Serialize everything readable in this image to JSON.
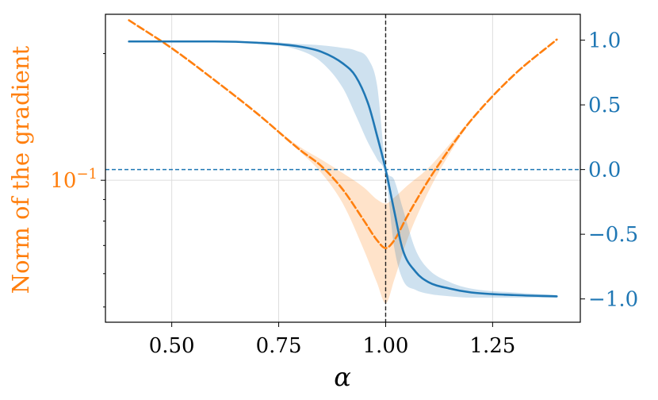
{
  "chart_data": {
    "type": "line",
    "xlabel": "α",
    "ylabel_left": "Norm of the gradient",
    "ylabel_right": "",
    "xlim": [
      0.345,
      1.455
    ],
    "x_ticks": [
      {
        "value": 0.5,
        "label": "0.50"
      },
      {
        "value": 0.75,
        "label": "0.75"
      },
      {
        "value": 1.0,
        "label": "1.00"
      },
      {
        "value": 1.25,
        "label": "1.25"
      }
    ],
    "left_axis": {
      "scale": "log",
      "ylim": [
        0.046,
        0.248
      ],
      "major_ticks": [
        {
          "value": 0.1,
          "base": "10",
          "exponent": "−1"
        }
      ],
      "minor_ticks": [
        0.05,
        0.06,
        0.07,
        0.08,
        0.09,
        0.2
      ]
    },
    "right_axis": {
      "scale": "linear",
      "ylim": [
        -1.18,
        1.2
      ],
      "ticks": [
        {
          "value": 1.0,
          "label": "1.0"
        },
        {
          "value": 0.5,
          "label": "0.5"
        },
        {
          "value": 0.0,
          "label": "0.0"
        },
        {
          "value": -0.5,
          "label": "−0.5"
        },
        {
          "value": -1.0,
          "label": "−1.0"
        }
      ]
    },
    "grid": true,
    "series": [
      {
        "axis": "left",
        "style": "dashed",
        "color": "#ff7f0e",
        "points": [
          {
            "x": 0.4,
            "y": 0.24,
            "lo": 0.24,
            "hi": 0.24
          },
          {
            "x": 0.5,
            "y": 0.206,
            "lo": 0.206,
            "hi": 0.206
          },
          {
            "x": 0.6,
            "y": 0.173,
            "lo": 0.173,
            "hi": 0.173
          },
          {
            "x": 0.7,
            "y": 0.144,
            "lo": 0.144,
            "hi": 0.144
          },
          {
            "x": 0.8,
            "y": 0.118,
            "lo": 0.117,
            "hi": 0.12
          },
          {
            "x": 0.85,
            "y": 0.108,
            "lo": 0.104,
            "hi": 0.112
          },
          {
            "x": 0.9,
            "y": 0.095,
            "lo": 0.088,
            "hi": 0.104
          },
          {
            "x": 0.95,
            "y": 0.08,
            "lo": 0.068,
            "hi": 0.096
          },
          {
            "x": 0.98,
            "y": 0.072,
            "lo": 0.057,
            "hi": 0.09
          },
          {
            "x": 1.0,
            "y": 0.069,
            "lo": 0.051,
            "hi": 0.088
          },
          {
            "x": 1.02,
            "y": 0.072,
            "lo": 0.058,
            "hi": 0.091
          },
          {
            "x": 1.05,
            "y": 0.082,
            "lo": 0.072,
            "hi": 0.097
          },
          {
            "x": 1.1,
            "y": 0.1,
            "lo": 0.094,
            "hi": 0.107
          },
          {
            "x": 1.15,
            "y": 0.119,
            "lo": 0.116,
            "hi": 0.122
          },
          {
            "x": 1.2,
            "y": 0.139,
            "lo": 0.138,
            "hi": 0.14
          },
          {
            "x": 1.3,
            "y": 0.178,
            "lo": 0.178,
            "hi": 0.178
          },
          {
            "x": 1.4,
            "y": 0.216,
            "lo": 0.216,
            "hi": 0.216
          }
        ]
      },
      {
        "axis": "right",
        "style": "solid",
        "color": "#1f77b4",
        "points": [
          {
            "x": 0.4,
            "y": 0.99,
            "lo": 0.99,
            "hi": 0.99
          },
          {
            "x": 0.6,
            "y": 0.99,
            "lo": 0.99,
            "hi": 0.99
          },
          {
            "x": 0.7,
            "y": 0.98,
            "lo": 0.98,
            "hi": 0.99
          },
          {
            "x": 0.8,
            "y": 0.95,
            "lo": 0.92,
            "hi": 0.97
          },
          {
            "x": 0.85,
            "y": 0.91,
            "lo": 0.83,
            "hi": 0.96
          },
          {
            "x": 0.9,
            "y": 0.82,
            "lo": 0.63,
            "hi": 0.94
          },
          {
            "x": 0.93,
            "y": 0.72,
            "lo": 0.42,
            "hi": 0.92
          },
          {
            "x": 0.96,
            "y": 0.5,
            "lo": 0.2,
            "hi": 0.85
          },
          {
            "x": 0.98,
            "y": 0.26,
            "lo": 0.08,
            "hi": 0.65
          },
          {
            "x": 1.0,
            "y": 0.0,
            "lo": -0.05,
            "hi": 0.03
          },
          {
            "x": 1.02,
            "y": -0.32,
            "lo": -0.6,
            "hi": -0.08
          },
          {
            "x": 1.04,
            "y": -0.62,
            "lo": -0.85,
            "hi": -0.3
          },
          {
            "x": 1.07,
            "y": -0.79,
            "lo": -0.93,
            "hi": -0.62
          },
          {
            "x": 1.1,
            "y": -0.87,
            "lo": -0.96,
            "hi": -0.77
          },
          {
            "x": 1.15,
            "y": -0.92,
            "lo": -0.98,
            "hi": -0.87
          },
          {
            "x": 1.2,
            "y": -0.95,
            "lo": -0.99,
            "hi": -0.92
          },
          {
            "x": 1.3,
            "y": -0.97,
            "lo": -0.99,
            "hi": -0.95
          },
          {
            "x": 1.4,
            "y": -0.98,
            "lo": -0.99,
            "hi": -0.97
          }
        ]
      }
    ],
    "reference_lines": [
      {
        "kind": "vertical",
        "x": 1.0,
        "style": "dashed",
        "color": "#222222"
      },
      {
        "kind": "horizontal",
        "axis": "right",
        "y": 0.0,
        "style": "dashed",
        "color": "#1f77b4"
      }
    ]
  }
}
